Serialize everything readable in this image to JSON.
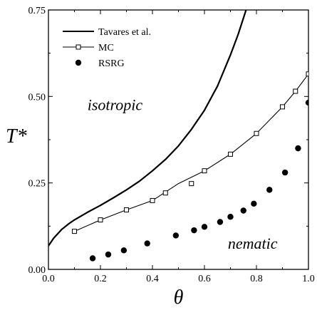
{
  "chart_data": {
    "type": "line",
    "title": "",
    "xlabel": "θ",
    "ylabel": "T*",
    "xlim": [
      0.0,
      1.0
    ],
    "ylim": [
      0.0,
      0.75
    ],
    "grid": false,
    "legend_position": "top-left",
    "x_ticks": [
      {
        "value": 0.0,
        "label": "0.0"
      },
      {
        "value": 0.2,
        "label": "0.2"
      },
      {
        "value": 0.4,
        "label": "0.4"
      },
      {
        "value": 0.6,
        "label": "0.6"
      },
      {
        "value": 0.8,
        "label": "0.8"
      },
      {
        "value": 1.0,
        "label": "1.0"
      }
    ],
    "y_ticks": [
      {
        "value": 0.0,
        "label": "0.00"
      },
      {
        "value": 0.25,
        "label": "0.25"
      },
      {
        "value": 0.5,
        "label": "0.50"
      },
      {
        "value": 0.75,
        "label": "0.75"
      }
    ],
    "series": [
      {
        "name": "Tavares et al.",
        "style": "line",
        "color": "#000000",
        "x": [
          0.0,
          0.02,
          0.05,
          0.08,
          0.1,
          0.15,
          0.2,
          0.25,
          0.3,
          0.35,
          0.4,
          0.45,
          0.5,
          0.55,
          0.6,
          0.65,
          0.7,
          0.73,
          0.76
        ],
        "y": [
          0.068,
          0.09,
          0.115,
          0.133,
          0.143,
          0.165,
          0.185,
          0.207,
          0.23,
          0.255,
          0.285,
          0.318,
          0.357,
          0.405,
          0.46,
          0.53,
          0.62,
          0.68,
          0.75
        ]
      },
      {
        "name": "MC",
        "style": "line-open-square",
        "color": "#000000",
        "x": [
          0.1,
          0.2,
          0.3,
          0.4,
          0.5,
          0.6,
          0.7,
          0.8,
          0.9,
          0.95,
          1.0
        ],
        "y": [
          0.11,
          0.143,
          0.172,
          0.199,
          0.248,
          0.285,
          0.333,
          0.393,
          0.47,
          0.515,
          0.565
        ],
        "marker_x": [
          0.1,
          0.2,
          0.3,
          0.4,
          0.45,
          0.55,
          0.6,
          0.7,
          0.8,
          0.9,
          0.95,
          1.0
        ],
        "marker_y": [
          0.11,
          0.143,
          0.172,
          0.199,
          0.221,
          0.248,
          0.285,
          0.333,
          0.393,
          0.47,
          0.515,
          0.565
        ]
      },
      {
        "name": "RSRG",
        "style": "filled-circle",
        "color": "#000000",
        "x": [
          0.17,
          0.23,
          0.29,
          0.38,
          0.49,
          0.56,
          0.6,
          0.66,
          0.7,
          0.75,
          0.79,
          0.85,
          0.91,
          0.96,
          1.0
        ],
        "y": [
          0.032,
          0.043,
          0.055,
          0.075,
          0.098,
          0.113,
          0.123,
          0.137,
          0.152,
          0.17,
          0.19,
          0.23,
          0.28,
          0.35,
          0.482
        ]
      }
    ],
    "annotations": [
      {
        "text": "isotropic",
        "x": 0.15,
        "y": 0.46
      },
      {
        "text": "nematic",
        "x": 0.69,
        "y": 0.06
      }
    ]
  }
}
